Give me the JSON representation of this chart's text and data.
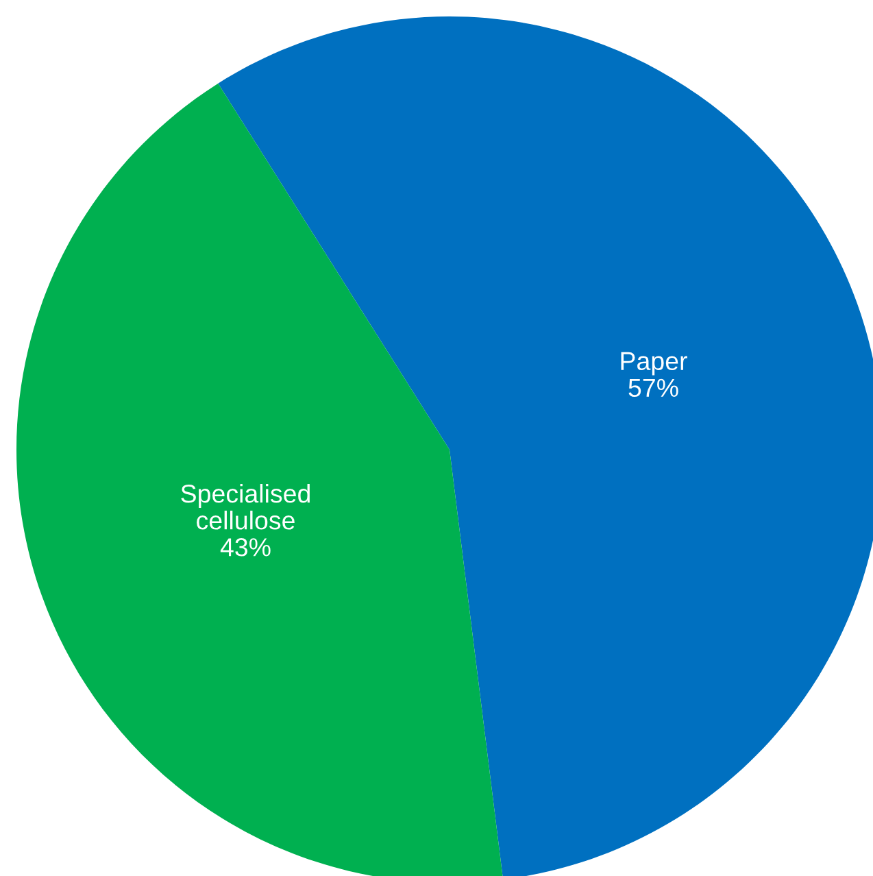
{
  "chart_data": {
    "type": "pie",
    "categories": [
      "Paper",
      "Specialised\ncellulose"
    ],
    "values": [
      57,
      43
    ],
    "colors": [
      "#0070c0",
      "#00b050"
    ],
    "value_labels": [
      "57%",
      "43%"
    ],
    "legend": false
  }
}
